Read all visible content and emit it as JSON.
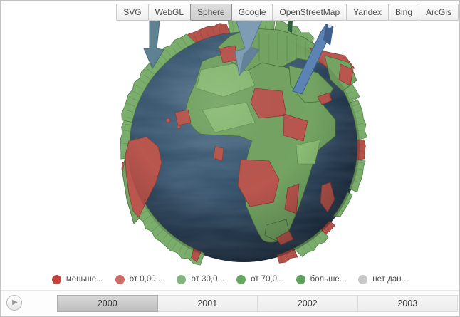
{
  "provider_tabs": {
    "items": [
      {
        "label": "SVG",
        "active": false
      },
      {
        "label": "WebGL",
        "active": false
      },
      {
        "label": "Sphere",
        "active": true
      },
      {
        "label": "Google",
        "active": false
      },
      {
        "label": "OpenStreetMap",
        "active": false
      },
      {
        "label": "Yandex",
        "active": false
      },
      {
        "label": "Bing",
        "active": false
      },
      {
        "label": "ArcGis",
        "active": false
      }
    ]
  },
  "legend": {
    "items": [
      {
        "label": "меньше...",
        "color": "#c4423c"
      },
      {
        "label": "от 0,00 ...",
        "color": "#cb6a62"
      },
      {
        "label": "от 30,0...",
        "color": "#84b57e"
      },
      {
        "label": "от 70,0...",
        "color": "#66a762"
      },
      {
        "label": "больше...",
        "color": "#5ca05c"
      },
      {
        "label": "нет дан...",
        "color": "#c8c8c8"
      }
    ]
  },
  "timeline": {
    "play_icon": "▶",
    "years": [
      {
        "label": "2000",
        "active": true
      },
      {
        "label": "2001",
        "active": false
      },
      {
        "label": "2002",
        "active": false
      },
      {
        "label": "2003",
        "active": false
      }
    ]
  },
  "globe": {
    "colors": {
      "ocean_deep": "#16283a",
      "ocean_mid": "#2e4c66",
      "ocean_light": "#4a6c86",
      "land_green": "#74a463",
      "land_green_light": "#8abb74",
      "land_red": "#b9564e",
      "rim_green": "#7bae6c",
      "rim_red": "#b5534b",
      "tower_teal": "#5e8291",
      "tower_steel_blue": "#7e9cb4",
      "tower_blue": "#5d82b4"
    }
  }
}
